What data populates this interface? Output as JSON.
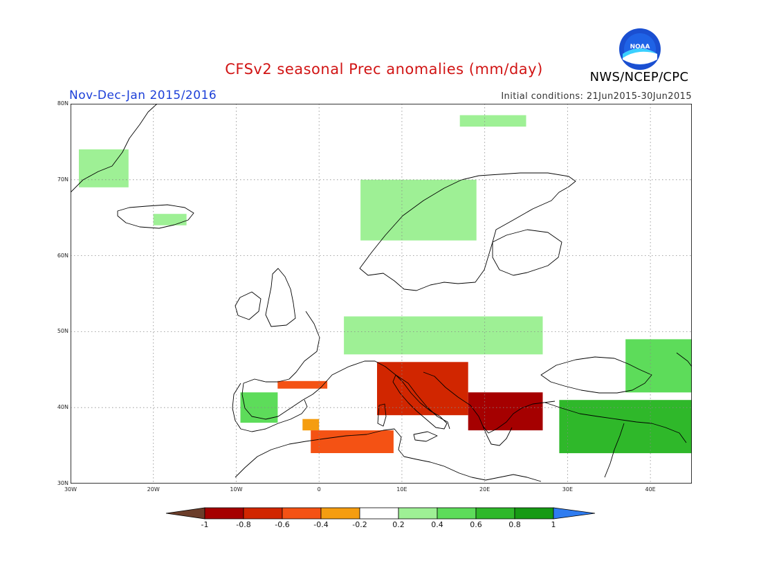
{
  "header": {
    "title": "CFSv2 seasonal Prec anomalies (mm/day)",
    "agency": "NWS/NCEP/CPC",
    "period": "Nov-Dec-Jan 2015/2016",
    "initial_conditions": "Initial conditions: 21Jun2015-30Jun2015",
    "logo_text": "NOAA"
  },
  "map": {
    "lon_range": [
      -30,
      45
    ],
    "lat_range": [
      30,
      80
    ],
    "lon_ticks": [
      {
        "value": -30,
        "label": "30W"
      },
      {
        "value": -20,
        "label": "20W"
      },
      {
        "value": -10,
        "label": "10W"
      },
      {
        "value": 0,
        "label": "0"
      },
      {
        "value": 10,
        "label": "10E"
      },
      {
        "value": 20,
        "label": "20E"
      },
      {
        "value": 30,
        "label": "30E"
      },
      {
        "value": 40,
        "label": "40E"
      }
    ],
    "lat_ticks": [
      {
        "value": 80,
        "label": "80N"
      },
      {
        "value": 70,
        "label": "70N"
      },
      {
        "value": 60,
        "label": "60N"
      },
      {
        "value": 50,
        "label": "50N"
      },
      {
        "value": 40,
        "label": "40N"
      },
      {
        "value": 30,
        "label": "30N"
      }
    ],
    "grid": "dotted",
    "anomaly_regions": [
      {
        "region": "Greenland east coast",
        "lon": [
          -29,
          -23
        ],
        "lat": [
          69,
          74
        ],
        "value": 0.3
      },
      {
        "region": "Iceland",
        "lon": [
          -20,
          -16
        ],
        "lat": [
          64,
          65.5
        ],
        "value": 0.3
      },
      {
        "region": "Norway coast",
        "lon": [
          5,
          19
        ],
        "lat": [
          62,
          70
        ],
        "value": 0.3
      },
      {
        "region": "Svalbard",
        "lon": [
          17,
          25
        ],
        "lat": [
          77,
          78.5
        ],
        "value": 0.3
      },
      {
        "region": "Central Europe",
        "lon": [
          3,
          27
        ],
        "lat": [
          47,
          52
        ],
        "value": 0.3
      },
      {
        "region": "Western Iberia",
        "lon": [
          -9.5,
          -5
        ],
        "lat": [
          38,
          42
        ],
        "value": 0.5
      },
      {
        "region": "Black Sea and Caucasus",
        "lon": [
          37,
          45
        ],
        "lat": [
          42,
          49
        ],
        "value": 0.5
      },
      {
        "region": "Turkey and Levant",
        "lon": [
          29,
          45
        ],
        "lat": [
          34,
          41
        ],
        "value": 0.7
      },
      {
        "region": "Northern Spain",
        "lon": [
          -5,
          1
        ],
        "lat": [
          42.5,
          43.5
        ],
        "value": -0.4
      },
      {
        "region": "Southeast Spain",
        "lon": [
          -2,
          0
        ],
        "lat": [
          37,
          38.5
        ],
        "value": -0.3
      },
      {
        "region": "Algeria and Tunisia coast",
        "lon": [
          -1,
          9
        ],
        "lat": [
          34,
          37
        ],
        "value": -0.4
      },
      {
        "region": "Italy",
        "lon": [
          7,
          18
        ],
        "lat": [
          39,
          46
        ],
        "value": -0.6
      },
      {
        "region": "Balkans and Greece",
        "lon": [
          18,
          27
        ],
        "lat": [
          37,
          42
        ],
        "value": -0.9
      }
    ]
  },
  "colorbar": {
    "ticks": [
      "-1",
      "-0.8",
      "-0.6",
      "-0.4",
      "-0.2",
      "0.2",
      "0.4",
      "0.6",
      "0.8",
      "1"
    ],
    "colors": {
      "lt_-1": "#6b3d2a",
      "-1_-0.8": "#a50000",
      "-0.8_-0.6": "#d12600",
      "-0.6_-0.4": "#f45214",
      "-0.4_-0.2": "#f59d10",
      "-0.2_0.2": "#ffffff",
      "0.2_0.4": "#9ef095",
      "0.4_0.6": "#5ddc5a",
      "0.6_0.8": "#2fb82a",
      "0.8_1": "#169a14",
      "gt_1": "#2f7cf0"
    }
  }
}
